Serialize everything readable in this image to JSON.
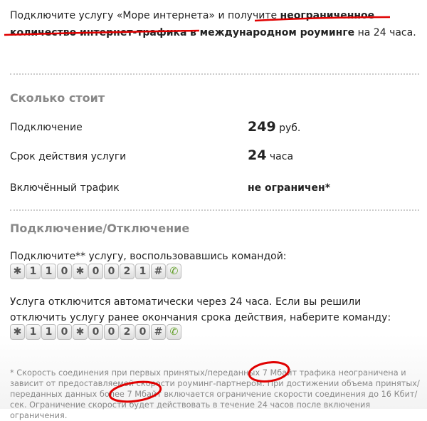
{
  "intro": {
    "t1": "Подключите услугу «Море интернета» и получите ",
    "b1": "неограниченное количество интернет-трафика",
    "t2": " ",
    "b2": "в международном роуминге",
    "t3": " на 24 часа."
  },
  "cost": {
    "heading": "Сколько стоит",
    "rows": [
      {
        "label": "Подключение",
        "value": "249",
        "unit": " руб."
      },
      {
        "label": "Срок действия услуги",
        "value": "24",
        "unit": " часа"
      },
      {
        "label": "Включённый трафик",
        "value": "не ограничен*",
        "unit": ""
      }
    ]
  },
  "connect": {
    "heading": "Подключение/Отключение",
    "text1": "Подключите** услугу, воспользовавшись командой:",
    "keys1": [
      "*",
      "1",
      "1",
      "0",
      "*",
      "0",
      "0",
      "2",
      "1",
      "#"
    ],
    "text2": "Услуга отключится автоматически через 24 часа. Если вы решили отключить услугу ранее окончания срока действия, наберите команду:",
    "keys2": [
      "*",
      "1",
      "1",
      "0",
      "*",
      "0",
      "0",
      "2",
      "0",
      "#"
    ],
    "call_icon": "phone-call-icon"
  },
  "footnote": "* Скорость соединения при первых принятых/переданных 7 Мбайт трафика неограничена и зависит от предоставляемой скорости роуминг-партнером. При достижении объема принятых/переданных данных более 7 Мбайт включается ограничение скорости соединения до 16 Кбит/сек. Ограничение скорости будет действовать в течение 24 часов после включения ограничения.",
  "colors": {
    "annotation": "#e00000",
    "heading": "#888888",
    "call": "#5a9a1e"
  }
}
